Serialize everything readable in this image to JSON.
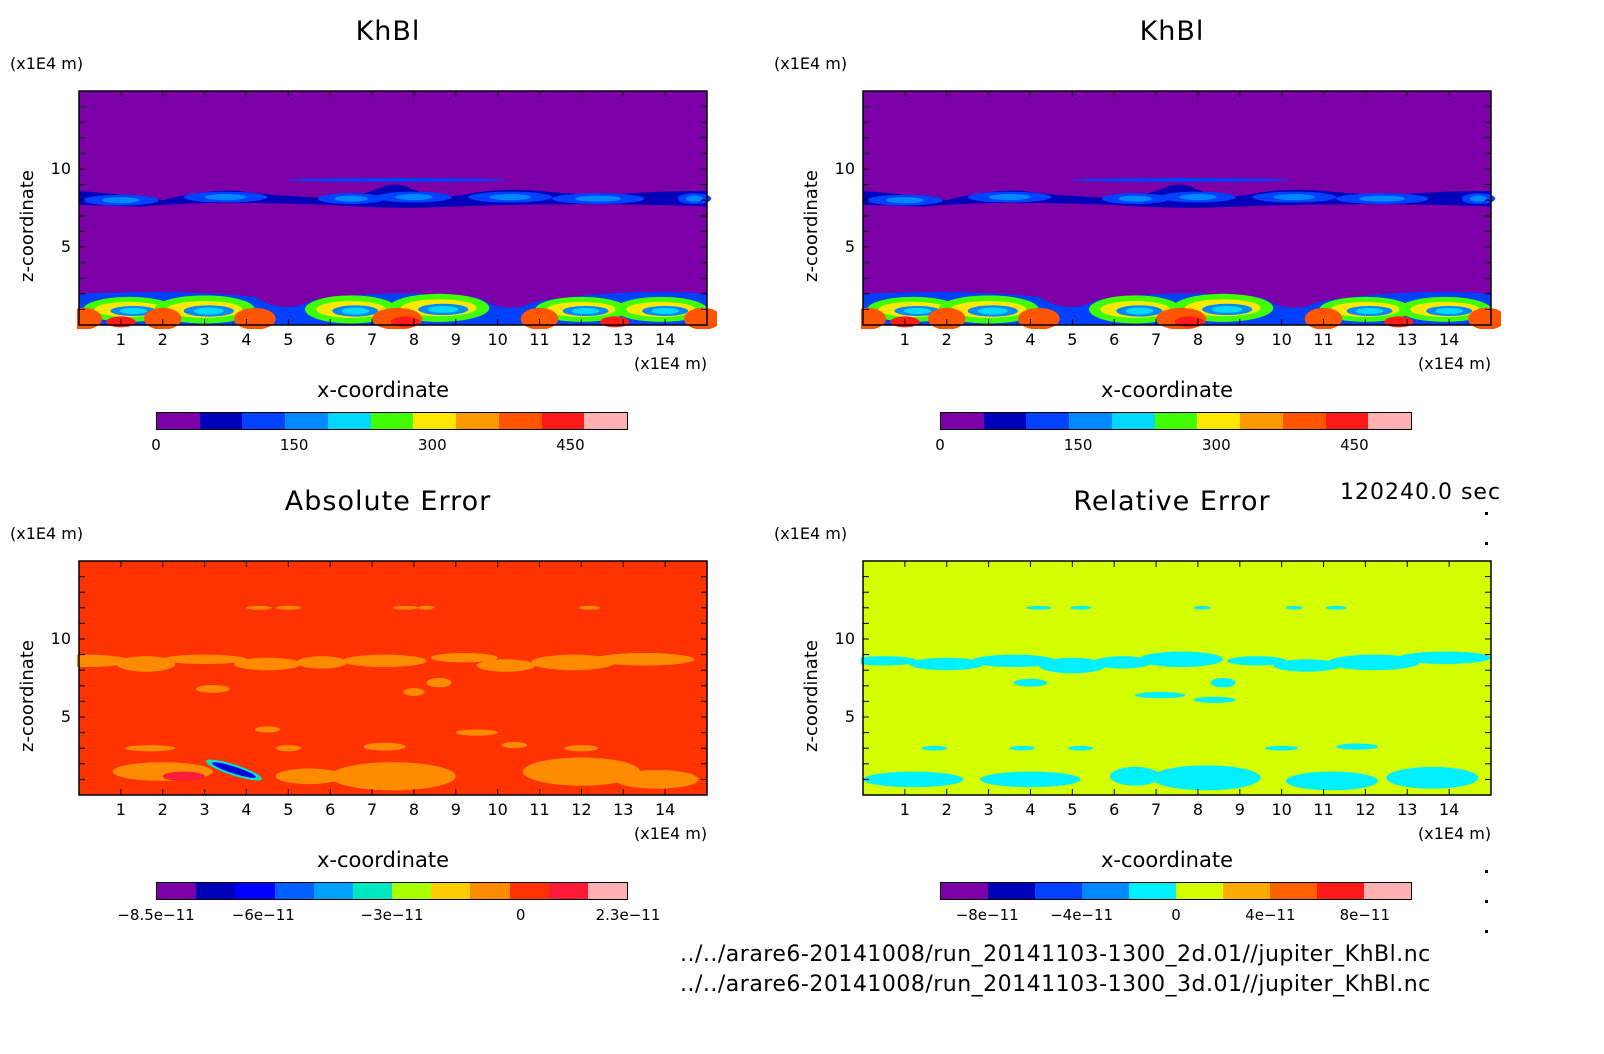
{
  "time_label": "120240.0 sec",
  "files": [
    "../../arare6-20141008/run_20141103-1300_2d.01//jupiter_KhBl.nc",
    "../../arare6-20141008/run_20141103-1300_3d.01//jupiter_KhBl.nc"
  ],
  "chart_data": [
    {
      "type": "heatmap",
      "title": "KhBl",
      "xlabel": "x-coordinate",
      "ylabel": "z-coordinate",
      "x_unit": "(x1E4 m)",
      "y_unit": "(x1E4 m)",
      "xlim": [
        0,
        15
      ],
      "ylim": [
        0,
        15
      ],
      "x_ticks": [
        "1",
        "2",
        "3",
        "4",
        "5",
        "6",
        "7",
        "8",
        "9",
        "10",
        "11",
        "12",
        "13",
        "14"
      ],
      "y_ticks": [
        "5",
        "10"
      ],
      "colorbar": {
        "colors": [
          "#7b00a8",
          "#0000b8",
          "#0040ff",
          "#0088ff",
          "#00d8ff",
          "#40ff00",
          "#ffe800",
          "#ff9900",
          "#ff5500",
          "#ff1a1a",
          "#ffb0b0"
        ],
        "tick_labels": [
          {
            "text": "0",
            "pos": 0.0
          },
          {
            "text": "150",
            "pos": 0.2927
          },
          {
            "text": "300",
            "pos": 0.5854
          },
          {
            "text": "450",
            "pos": 0.878
          }
        ]
      },
      "field": "khbl"
    },
    {
      "type": "heatmap",
      "title": "KhBl",
      "xlabel": "x-coordinate",
      "ylabel": "z-coordinate",
      "x_unit": "(x1E4 m)",
      "y_unit": "(x1E4 m)",
      "xlim": [
        0,
        15
      ],
      "ylim": [
        0,
        15
      ],
      "x_ticks": [
        "1",
        "2",
        "3",
        "4",
        "5",
        "6",
        "7",
        "8",
        "9",
        "10",
        "11",
        "12",
        "13",
        "14"
      ],
      "y_ticks": [
        "5",
        "10"
      ],
      "colorbar": {
        "colors": [
          "#7b00a8",
          "#0000b8",
          "#0040ff",
          "#0088ff",
          "#00d8ff",
          "#40ff00",
          "#ffe800",
          "#ff9900",
          "#ff5500",
          "#ff1a1a",
          "#ffb0b0"
        ],
        "tick_labels": [
          {
            "text": "0",
            "pos": 0.0
          },
          {
            "text": "150",
            "pos": 0.2927
          },
          {
            "text": "300",
            "pos": 0.5854
          },
          {
            "text": "450",
            "pos": 0.878
          }
        ]
      },
      "field": "khbl"
    },
    {
      "type": "heatmap",
      "title": "Absolute Error",
      "xlabel": "x-coordinate",
      "ylabel": "z-coordinate",
      "x_unit": "(x1E4 m)",
      "y_unit": "(x1E4 m)",
      "xlim": [
        0,
        15
      ],
      "ylim": [
        0,
        15
      ],
      "x_ticks": [
        "1",
        "2",
        "3",
        "4",
        "5",
        "6",
        "7",
        "8",
        "9",
        "10",
        "11",
        "12",
        "13",
        "14"
      ],
      "y_ticks": [
        "5",
        "10"
      ],
      "colorbar": {
        "colors": [
          "#7b00a8",
          "#0000b8",
          "#0000ff",
          "#0060ff",
          "#00a0ff",
          "#00e8c0",
          "#a8ff00",
          "#ffcc00",
          "#ff8c00",
          "#ff3300",
          "#ff1a3a",
          "#ffb0b0"
        ],
        "tick_labels": [
          {
            "text": "−8.5e−11",
            "pos": 0.0
          },
          {
            "text": "−6e−11",
            "pos": 0.2273
          },
          {
            "text": "−3e−11",
            "pos": 0.5
          },
          {
            "text": "0",
            "pos": 0.7727
          },
          {
            "text": "2.3e−11",
            "pos": 1.0
          }
        ]
      },
      "field": "abs_error"
    },
    {
      "type": "heatmap",
      "title": "Relative Error",
      "xlabel": "x-coordinate",
      "ylabel": "z-coordinate",
      "x_unit": "(x1E4 m)",
      "y_unit": "(x1E4 m)",
      "xlim": [
        0,
        15
      ],
      "ylim": [
        0,
        15
      ],
      "x_ticks": [
        "1",
        "2",
        "3",
        "4",
        "5",
        "6",
        "7",
        "8",
        "9",
        "10",
        "11",
        "12",
        "13",
        "14"
      ],
      "y_ticks": [
        "5",
        "10"
      ],
      "colorbar": {
        "colors": [
          "#7b00a8",
          "#0000b8",
          "#0040ff",
          "#0088ff",
          "#00f0ff",
          "#d4ff00",
          "#ffaa00",
          "#ff6000",
          "#ff1a1a",
          "#ffb0b0"
        ],
        "tick_labels": [
          {
            "text": "−8e−11",
            "pos": 0.1
          },
          {
            "text": "−4e−11",
            "pos": 0.3
          },
          {
            "text": "0",
            "pos": 0.5
          },
          {
            "text": "4e−11",
            "pos": 0.7
          },
          {
            "text": "8e−11",
            "pos": 0.9
          }
        ]
      },
      "field": "rel_error"
    }
  ]
}
